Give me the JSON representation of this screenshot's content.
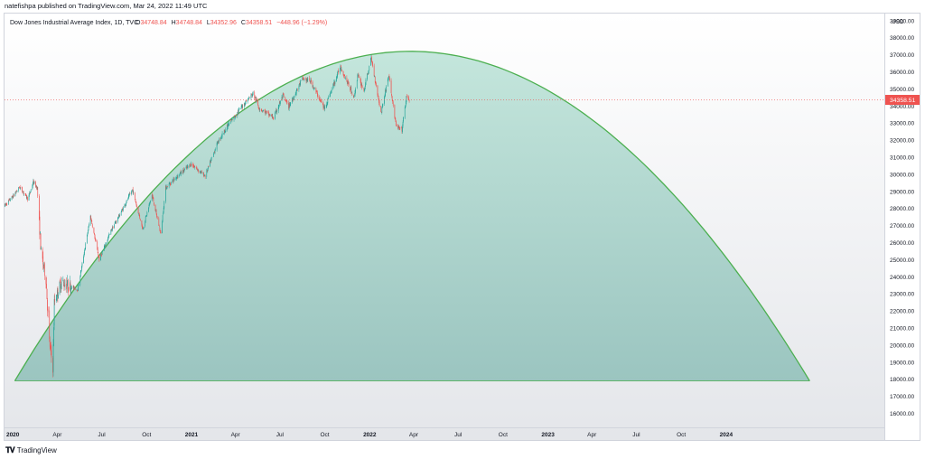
{
  "publisher_line": "natefishpa published on TradingView.com, Mar 24, 2022 11:49 UTC",
  "footer": {
    "logo_icon": "tradingview-logo-icon",
    "brand": "TradingView"
  },
  "colors": {
    "up": "#26a69a",
    "down": "#ef5350",
    "arc": "#4caf50",
    "fill_top": "#c4e6dc",
    "fill_bottom": "#9bc5c0",
    "price_tag": "#ef5350"
  },
  "chart_data": {
    "type": "candlestick",
    "legend": {
      "symbol": "Dow Jones Industrial Average Index, 1D, TVC",
      "open_label": "O",
      "open": "34748.84",
      "high_label": "H",
      "high": "34748.84",
      "low_label": "L",
      "low": "34352.96",
      "close_label": "C",
      "close": "34358.51",
      "change": "−448.96 (−1.29%)"
    },
    "y_axis": {
      "unit": "USD",
      "scale": "linear",
      "range": [
        15500,
        39200
      ],
      "ticks": [
        39000,
        38000,
        37000,
        36000,
        35000,
        34000,
        33000,
        32000,
        31000,
        30000,
        29000,
        28000,
        27000,
        26000,
        25000,
        24000,
        23000,
        22000,
        21000,
        20000,
        19000,
        18000,
        17000,
        16000
      ],
      "tick_labels": [
        "39000.00",
        "38000.00",
        "37000.00",
        "36000.00",
        "35000.00",
        "34000.00",
        "33000.00",
        "32000.00",
        "31000.00",
        "30000.00",
        "29000.00",
        "28000.00",
        "27000.00",
        "26000.00",
        "25000.00",
        "24000.00",
        "23000.00",
        "22000.00",
        "21000.00",
        "20000.00",
        "19000.00",
        "18000.00",
        "17000.00",
        "16000.00"
      ]
    },
    "x_axis": {
      "range": [
        "2019-12-15",
        "2024-11-20"
      ],
      "ticks": [
        {
          "date": "2020-01-01",
          "label": "2020",
          "bold": true
        },
        {
          "date": "2020-04-01",
          "label": "Apr"
        },
        {
          "date": "2020-07-01",
          "label": "Jul"
        },
        {
          "date": "2020-10-01",
          "label": "Oct"
        },
        {
          "date": "2021-01-01",
          "label": "2021",
          "bold": true
        },
        {
          "date": "2021-04-01",
          "label": "Apr"
        },
        {
          "date": "2021-07-01",
          "label": "Jul"
        },
        {
          "date": "2021-10-01",
          "label": "Oct"
        },
        {
          "date": "2022-01-01",
          "label": "2022",
          "bold": true
        },
        {
          "date": "2022-04-01",
          "label": "Apr"
        },
        {
          "date": "2022-07-01",
          "label": "Jul"
        },
        {
          "date": "2022-10-01",
          "label": "Oct"
        },
        {
          "date": "2023-01-01",
          "label": "2023",
          "bold": true
        },
        {
          "date": "2023-04-01",
          "label": "Apr"
        },
        {
          "date": "2023-07-01",
          "label": "Jul"
        },
        {
          "date": "2023-10-01",
          "label": "Oct"
        },
        {
          "date": "2024-01-01",
          "label": "2024",
          "bold": true
        }
      ]
    },
    "last_price": {
      "value": 34358.51,
      "label": "34358.51"
    },
    "price_path": [
      [
        "2019-12-15",
        28150
      ],
      [
        "2020-01-01",
        28700
      ],
      [
        "2020-01-15",
        29250
      ],
      [
        "2020-02-01",
        28550
      ],
      [
        "2020-02-12",
        29550
      ],
      [
        "2020-02-20",
        29200
      ],
      [
        "2020-02-28",
        25400
      ],
      [
        "2020-03-09",
        23850
      ],
      [
        "2020-03-16",
        20200
      ],
      [
        "2020-03-23",
        18600
      ],
      [
        "2020-03-26",
        22500
      ],
      [
        "2020-04-09",
        23700
      ],
      [
        "2020-04-22",
        23500
      ],
      [
        "2020-05-13",
        23250
      ],
      [
        "2020-06-08",
        27550
      ],
      [
        "2020-06-26",
        25000
      ],
      [
        "2020-07-20",
        26700
      ],
      [
        "2020-08-10",
        27800
      ],
      [
        "2020-09-02",
        29100
      ],
      [
        "2020-09-23",
        26800
      ],
      [
        "2020-10-12",
        28800
      ],
      [
        "2020-10-30",
        26500
      ],
      [
        "2020-11-09",
        29200
      ],
      [
        "2020-12-01",
        29850
      ],
      [
        "2020-12-31",
        30600
      ],
      [
        "2021-01-29",
        29900
      ],
      [
        "2021-02-24",
        31900
      ],
      [
        "2021-03-15",
        32800
      ],
      [
        "2021-04-15",
        34000
      ],
      [
        "2021-05-07",
        34750
      ],
      [
        "2021-05-19",
        33900
      ],
      [
        "2021-06-18",
        33300
      ],
      [
        "2021-07-07",
        34600
      ],
      [
        "2021-07-19",
        33950
      ],
      [
        "2021-08-16",
        35600
      ],
      [
        "2021-09-02",
        35450
      ],
      [
        "2021-09-30",
        33850
      ],
      [
        "2021-11-02",
        36300
      ],
      [
        "2021-11-30",
        34500
      ],
      [
        "2021-12-07",
        35800
      ],
      [
        "2021-12-20",
        34900
      ],
      [
        "2022-01-04",
        36800
      ],
      [
        "2022-01-24",
        33600
      ],
      [
        "2022-02-09",
        35800
      ],
      [
        "2022-02-24",
        32800
      ],
      [
        "2022-03-08",
        32600
      ],
      [
        "2022-03-17",
        34500
      ],
      [
        "2022-03-23",
        34358.51
      ]
    ],
    "overlay_arc": {
      "shape": "filled parabolic arc",
      "start": {
        "date": "2020-01-05",
        "value": 17900
      },
      "peak": {
        "date": "2022-03-25",
        "value": 37200
      },
      "end": {
        "date": "2024-06-20",
        "value": 17900
      }
    }
  }
}
